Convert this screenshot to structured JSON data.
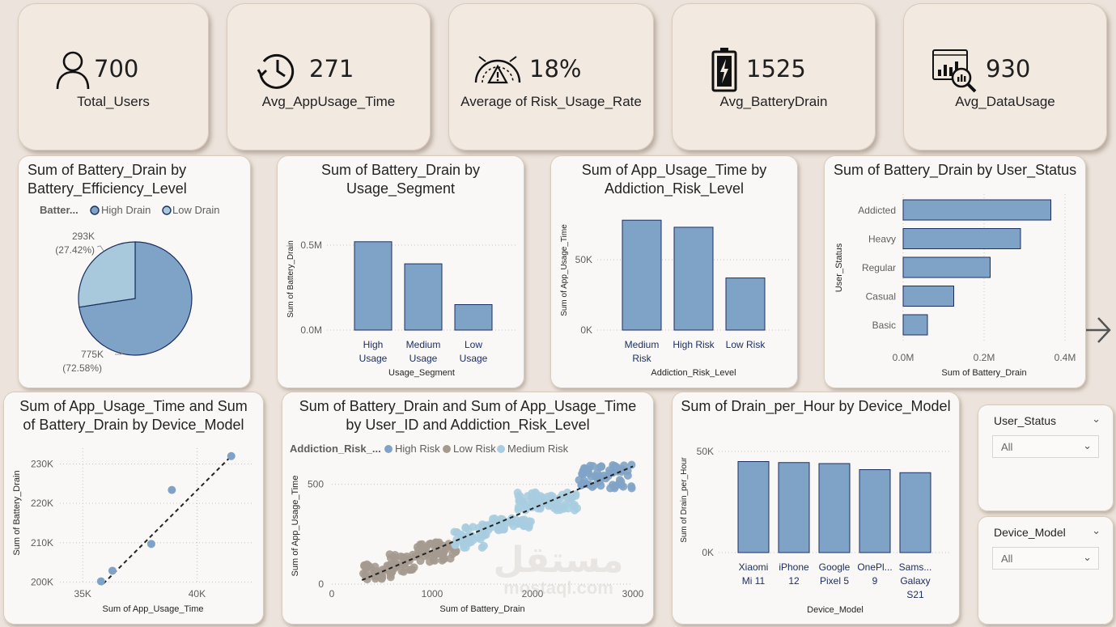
{
  "kpis": [
    {
      "value": "700",
      "label": "Total_Users",
      "icon": "user-icon"
    },
    {
      "value": "271",
      "label": "Avg_AppUsage_Time",
      "icon": "clock-icon"
    },
    {
      "value": "18%",
      "label": "Average of Risk_Usage_Rate",
      "icon": "gauge-warning-icon"
    },
    {
      "value": "1525",
      "label": "Avg_BatteryDrain",
      "icon": "battery-icon"
    },
    {
      "value": "930",
      "label": "Avg_DataUsage",
      "icon": "data-analytics-icon"
    }
  ],
  "colors": {
    "bar": "#7fa3c7",
    "bar_stroke": "#1c2f63",
    "light": "#a8c8db",
    "brown": "#a59a8f",
    "medium": "#a8cde0"
  },
  "pie": {
    "title_line1": "Sum of Battery_Drain by",
    "title_line2": "Battery_Efficiency_Level",
    "legend_title": "Batter...",
    "legend": [
      "High Drain",
      "Low Drain"
    ],
    "label_low_value": "293K",
    "label_low_pct": "(27.42%)",
    "label_high_value": "775K",
    "label_high_pct": "(72.58%)",
    "chart_data": {
      "type": "pie",
      "categories": [
        "High Drain",
        "Low Drain"
      ],
      "values": [
        775,
        293
      ],
      "percents": [
        72.58,
        27.42
      ],
      "legend": "top"
    }
  },
  "segment": {
    "title_line1": "Sum of Battery_Drain by",
    "title_line2": "Usage_Segment",
    "ylabel": "Sum of Battery_Drain",
    "xlabel": "Usage_Segment",
    "yticks": [
      "0.5M",
      "0.0M"
    ],
    "cat_lines": [
      [
        "High",
        "Usage"
      ],
      [
        "Medium",
        "Usage"
      ],
      [
        "Low",
        "Usage"
      ]
    ],
    "chart_data": {
      "type": "bar",
      "categories": [
        "High Usage",
        "Medium Usage",
        "Low Usage"
      ],
      "values": [
        0.52,
        0.39,
        0.15
      ],
      "ylim": [
        0,
        0.6
      ],
      "unit": "M"
    }
  },
  "risk": {
    "title_line1": "Sum of App_Usage_Time by",
    "title_line2": "Addiction_Risk_Level",
    "ylabel": "Sum of App_Usage_Time",
    "xlabel": "Addiction_Risk_Level",
    "yticks": [
      "50K",
      "0K"
    ],
    "cat_lines": [
      [
        "Medium",
        "Risk"
      ],
      [
        "High Risk"
      ],
      [
        "Low Risk"
      ]
    ],
    "chart_data": {
      "type": "bar",
      "categories": [
        "Medium Risk",
        "High Risk",
        "Low Risk"
      ],
      "values": [
        78,
        73,
        37
      ],
      "ylim": [
        0,
        85
      ],
      "unit": "K"
    }
  },
  "status": {
    "title": "Sum of Battery_Drain by User_Status",
    "ylabel": "User_Status",
    "xlabel": "Sum of Battery_Drain",
    "xticks": [
      "0.0M",
      "0.2M",
      "0.4M"
    ],
    "chart_data": {
      "type": "bar",
      "orientation": "horizontal",
      "categories": [
        "Addicted",
        "Heavy",
        "Regular",
        "Casual",
        "Basic"
      ],
      "values": [
        0.365,
        0.29,
        0.215,
        0.125,
        0.06
      ],
      "xlim": [
        0,
        0.4
      ],
      "unit": "M"
    }
  },
  "device_scatter": {
    "title_line1": "Sum of App_Usage_Time and Sum",
    "title_line2": "of Battery_Drain by Device_Model",
    "xlabel": "Sum of App_Usage_Time",
    "ylabel": "Sum of Battery_Drain",
    "xticks": [
      "35K",
      "40K"
    ],
    "yticks": [
      "230K",
      "220K",
      "210K",
      "200K"
    ],
    "chart_data": {
      "type": "scatter",
      "x": [
        35.8,
        36.3,
        38.0,
        38.9,
        41.5
      ],
      "y": [
        200.2,
        202.9,
        209.7,
        223.4,
        232.0
      ],
      "xlim": [
        34.0,
        42.5
      ],
      "ylim": [
        199.5,
        234.0
      ],
      "trendline": true,
      "units": "K"
    }
  },
  "user_scatter": {
    "title_line1": "Sum of Battery_Drain and Sum of App_Usage_Time",
    "title_line2": "by User_ID and Addiction_Risk_Level",
    "legend_title": "Addiction_Risk_...",
    "legend": [
      "High Risk",
      "Low Risk",
      "Medium Risk"
    ],
    "xlabel": "Sum of Battery_Drain",
    "ylabel": "Sum of App_Usage_Time",
    "xticks": [
      "0",
      "1000",
      "2000",
      "3000"
    ],
    "yticks": [
      "500",
      "0"
    ],
    "chart_data": {
      "type": "scatter",
      "series": [
        {
          "name": "Low Risk",
          "x_range": [
            300,
            1250
          ],
          "y_range": [
            20,
            220
          ]
        },
        {
          "name": "Medium Risk",
          "x_range": [
            1200,
            2450
          ],
          "y_range": [
            180,
            460
          ]
        },
        {
          "name": "High Risk",
          "x_range": [
            2450,
            3000
          ],
          "y_range": [
            480,
            600
          ]
        }
      ],
      "xlim": [
        0,
        3000
      ],
      "ylim": [
        0,
        600
      ],
      "trendline": true
    }
  },
  "drain_hour": {
    "title": "Sum of Drain_per_Hour by Device_Model",
    "ylabel": "Sum of Drain_per_Hour",
    "xlabel": "Device_Model",
    "yticks": [
      "50K",
      "0K"
    ],
    "cat_lines": [
      [
        "Xiaomi",
        "Mi 11"
      ],
      [
        "iPhone",
        "12"
      ],
      [
        "Google",
        "Pixel 5"
      ],
      [
        "OnePl...",
        "9"
      ],
      [
        "Sams...",
        "Galaxy",
        "S21"
      ]
    ],
    "chart_data": {
      "type": "bar",
      "categories": [
        "Xiaomi Mi 11",
        "iPhone 12",
        "Google Pixel 5",
        "OnePlus 9",
        "Samsung Galaxy S21"
      ],
      "values": [
        45,
        44.5,
        44,
        41,
        39.5
      ],
      "ylim": [
        0,
        52
      ],
      "unit": "K"
    }
  },
  "slicers": [
    {
      "title": "User_Status",
      "value": "All"
    },
    {
      "title": "Device_Model",
      "value": "All"
    }
  ],
  "watermark": {
    "arabic": "مستقل",
    "latin": "mostaql.com"
  }
}
